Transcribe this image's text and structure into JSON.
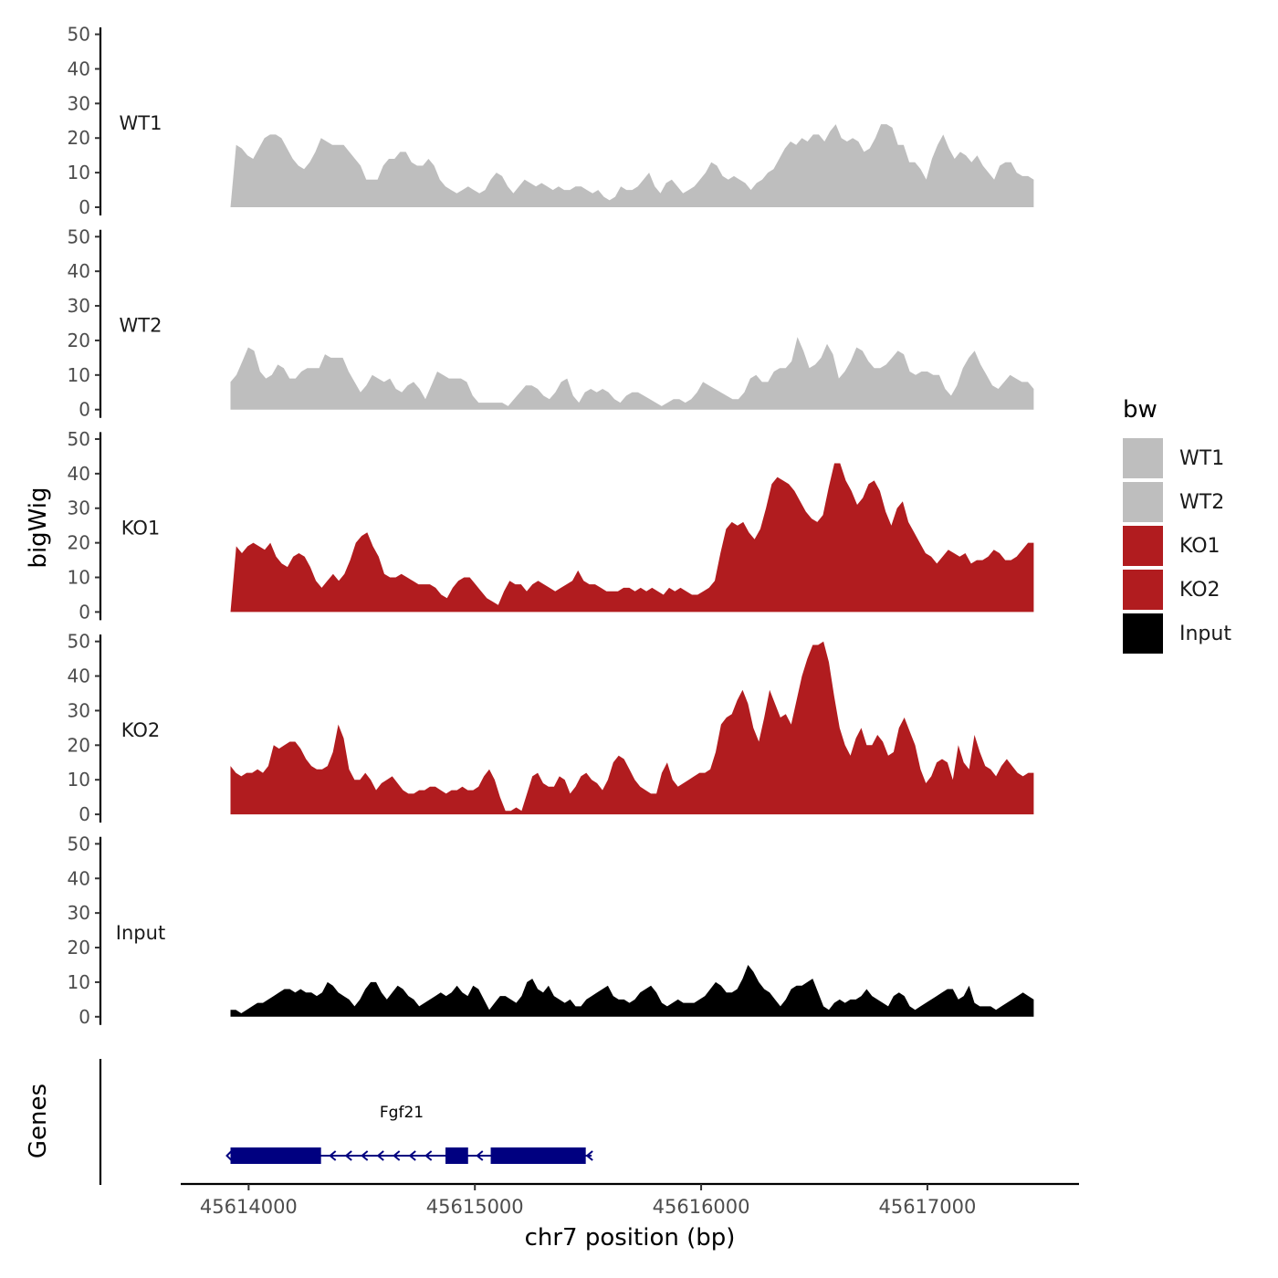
{
  "chart_data": {
    "type": "area",
    "ylabel": "bigWig",
    "xlabel": "chr7 position (bp)",
    "yticks": [
      0,
      10,
      20,
      30,
      40,
      50
    ],
    "ylim": [
      0,
      52
    ],
    "xlim": [
      45613700,
      45617670
    ],
    "xticks": [
      45614000,
      45615000,
      45616000,
      45617000
    ],
    "xtick_labels": [
      "45614000",
      "45615000",
      "45616000",
      "45617000"
    ],
    "x_range": [
      45613920,
      45617470
    ],
    "colors": {
      "wt": "#bebebe",
      "ko": "#b11c1f",
      "input": "#000000",
      "gene": "#000080"
    },
    "tracks": [
      {
        "name": "WT1",
        "color": "#bebebe",
        "values": [
          0,
          18,
          17,
          15,
          14,
          17,
          20,
          21,
          21,
          20,
          17,
          14,
          12,
          11,
          13,
          16,
          20,
          19,
          18,
          18,
          18,
          16,
          14,
          12,
          8,
          8,
          8,
          12,
          14,
          14,
          16,
          16,
          13,
          12,
          12,
          14,
          12,
          8,
          6,
          5,
          4,
          5,
          6,
          5,
          4,
          5,
          8,
          10,
          9,
          6,
          4,
          6,
          8,
          7,
          6,
          7,
          6,
          5,
          6,
          5,
          5,
          6,
          6,
          5,
          4,
          5,
          3,
          2,
          3,
          6,
          5,
          5,
          6,
          8,
          10,
          6,
          4,
          7,
          8,
          6,
          4,
          5,
          6,
          8,
          10,
          13,
          12,
          9,
          8,
          9,
          8,
          7,
          5,
          7,
          8,
          10,
          11,
          14,
          17,
          19,
          18,
          20,
          19,
          21,
          21,
          19,
          22,
          24,
          20,
          19,
          20,
          19,
          16,
          17,
          20,
          24,
          24,
          23,
          18,
          18,
          13,
          13,
          11,
          8,
          14,
          18,
          21,
          17,
          14,
          16,
          15,
          13,
          15,
          12,
          10,
          8,
          12,
          13,
          13,
          10,
          9,
          9,
          8
        ]
      },
      {
        "name": "WT2",
        "color": "#bebebe",
        "values": [
          8,
          10,
          14,
          18,
          17,
          11,
          9,
          10,
          13,
          12,
          9,
          9,
          11,
          12,
          12,
          12,
          16,
          15,
          15,
          15,
          11,
          8,
          5,
          7,
          10,
          9,
          8,
          9,
          6,
          5,
          7,
          8,
          6,
          3,
          7,
          11,
          10,
          9,
          9,
          9,
          8,
          4,
          2,
          2,
          2,
          2,
          2,
          1,
          3,
          5,
          7,
          7,
          6,
          4,
          3,
          5,
          8,
          9,
          4,
          2,
          5,
          6,
          5,
          6,
          5,
          3,
          2,
          4,
          5,
          5,
          4,
          3,
          2,
          1,
          2,
          3,
          3,
          2,
          3,
          5,
          8,
          7,
          6,
          5,
          4,
          3,
          3,
          5,
          9,
          10,
          8,
          8,
          11,
          12,
          12,
          14,
          21,
          17,
          12,
          13,
          15,
          19,
          16,
          9,
          11,
          14,
          18,
          17,
          14,
          12,
          12,
          13,
          15,
          17,
          16,
          11,
          10,
          11,
          11,
          10,
          10,
          6,
          4,
          7,
          12,
          15,
          17,
          13,
          10,
          7,
          6,
          8,
          10,
          9,
          8,
          8,
          6
        ]
      },
      {
        "name": "KO1",
        "color": "#b11c1f",
        "values": [
          0,
          19,
          17,
          19,
          20,
          19,
          18,
          20,
          16,
          14,
          13,
          16,
          17,
          16,
          13,
          9,
          7,
          9,
          11,
          9,
          11,
          15,
          20,
          22,
          23,
          19,
          16,
          11,
          10,
          10,
          11,
          10,
          9,
          8,
          8,
          8,
          7,
          5,
          4,
          7,
          9,
          10,
          10,
          8,
          6,
          4,
          3,
          2,
          6,
          9,
          8,
          8,
          6,
          8,
          9,
          8,
          7,
          6,
          7,
          8,
          9,
          12,
          9,
          8,
          8,
          7,
          6,
          6,
          6,
          7,
          7,
          6,
          7,
          6,
          7,
          6,
          5,
          7,
          6,
          7,
          6,
          5,
          5,
          6,
          7,
          9,
          17,
          24,
          26,
          25,
          26,
          23,
          21,
          24,
          30,
          37,
          39,
          38,
          37,
          35,
          32,
          29,
          27,
          26,
          28,
          36,
          43,
          43,
          38,
          35,
          31,
          33,
          37,
          38,
          35,
          29,
          25,
          30,
          32,
          26,
          23,
          20,
          17,
          16,
          14,
          16,
          18,
          17,
          16,
          17,
          14,
          15,
          15,
          16,
          18,
          17,
          15,
          15,
          16,
          18,
          20,
          20
        ]
      },
      {
        "name": "KO2",
        "color": "#b11c1f",
        "values": [
          14,
          12,
          11,
          12,
          12,
          13,
          12,
          14,
          20,
          19,
          20,
          21,
          21,
          19,
          16,
          14,
          13,
          13,
          14,
          18,
          26,
          22,
          13,
          10,
          10,
          12,
          10,
          7,
          9,
          10,
          11,
          9,
          7,
          6,
          6,
          7,
          7,
          8,
          8,
          7,
          6,
          7,
          7,
          8,
          7,
          7,
          8,
          11,
          13,
          10,
          5,
          1,
          1,
          2,
          1,
          6,
          11,
          12,
          9,
          8,
          8,
          11,
          10,
          6,
          8,
          11,
          12,
          10,
          9,
          7,
          10,
          15,
          17,
          16,
          13,
          10,
          8,
          7,
          6,
          6,
          12,
          15,
          10,
          8,
          9,
          10,
          11,
          12,
          12,
          13,
          18,
          26,
          28,
          29,
          33,
          36,
          32,
          25,
          21,
          28,
          36,
          32,
          28,
          29,
          26,
          33,
          40,
          45,
          49,
          49,
          50,
          44,
          34,
          25,
          20,
          17,
          22,
          25,
          20,
          20,
          23,
          21,
          17,
          18,
          25,
          28,
          24,
          20,
          13,
          9,
          11,
          15,
          16,
          15,
          10,
          20,
          15,
          13,
          23,
          18,
          14,
          13,
          11,
          14,
          16,
          14,
          12,
          11,
          12,
          12
        ]
      },
      {
        "name": "Input",
        "color": "#000000",
        "values": [
          2,
          2,
          1,
          2,
          3,
          4,
          4,
          5,
          6,
          7,
          8,
          8,
          7,
          8,
          7,
          7,
          6,
          7,
          10,
          9,
          7,
          6,
          5,
          3,
          5,
          8,
          10,
          10,
          7,
          5,
          7,
          9,
          8,
          6,
          5,
          3,
          4,
          5,
          6,
          7,
          6,
          7,
          9,
          7,
          6,
          9,
          8,
          5,
          2,
          4,
          6,
          6,
          5,
          4,
          6,
          10,
          11,
          8,
          7,
          9,
          6,
          5,
          4,
          5,
          3,
          3,
          5,
          6,
          7,
          8,
          9,
          6,
          5,
          5,
          4,
          5,
          7,
          8,
          9,
          7,
          4,
          3,
          4,
          5,
          4,
          4,
          4,
          5,
          6,
          8,
          10,
          9,
          7,
          7,
          8,
          11,
          15,
          13,
          10,
          8,
          7,
          5,
          3,
          5,
          8,
          9,
          9,
          10,
          11,
          7,
          3,
          2,
          4,
          5,
          4,
          5,
          5,
          6,
          8,
          6,
          5,
          4,
          3,
          6,
          7,
          6,
          3,
          2,
          3,
          4,
          5,
          6,
          7,
          8,
          8,
          5,
          6,
          9,
          4,
          3,
          3,
          3,
          2,
          3,
          4,
          5,
          6,
          7,
          6,
          5
        ]
      }
    ],
    "genes_track": {
      "label": "Genes",
      "gene_name": "Fgf21",
      "gene_start": 45613920,
      "gene_end": 45615500,
      "exons": [
        [
          45613920,
          45614320
        ],
        [
          45614870,
          45614970
        ],
        [
          45615070,
          45615490
        ]
      ],
      "strand": "-"
    },
    "legend": {
      "title": "bw",
      "entries": [
        {
          "label": "WT1",
          "color": "#bebebe"
        },
        {
          "label": "WT2",
          "color": "#bebebe"
        },
        {
          "label": "KO1",
          "color": "#b11c1f"
        },
        {
          "label": "KO2",
          "color": "#b11c1f"
        },
        {
          "label": "Input",
          "color": "#000000"
        }
      ]
    }
  }
}
